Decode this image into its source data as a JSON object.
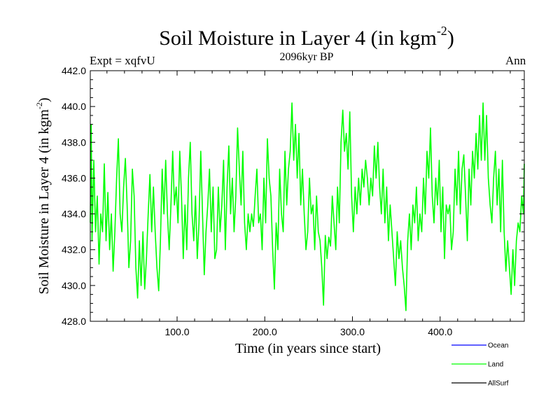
{
  "chart_data": {
    "type": "line",
    "title_main": "Soil Moisture in Layer 4 (in kgm",
    "title_exp": "-2",
    "title_close": ")",
    "subtitle": "2096kyr BP",
    "expt_label": "Expt = xqfvU",
    "season_label": "Ann",
    "xlabel": "Time (in years since start)",
    "ylabel_main": "Soil Moisture in Layer 4 (in kgm",
    "ylabel_exp": "-2",
    "ylabel_close": ")",
    "xlim": [
      1,
      496
    ],
    "ylim": [
      428.0,
      442.0
    ],
    "x_ticks": [
      100,
      200,
      300,
      400
    ],
    "x_tick_labels": [
      "100.0",
      "200.0",
      "300.0",
      "400.0"
    ],
    "y_ticks": [
      428,
      430,
      432,
      434,
      436,
      438,
      440,
      442
    ],
    "y_tick_labels": [
      "428.0",
      "430.0",
      "432.0",
      "434.0",
      "436.0",
      "438.0",
      "440.0",
      "442.0"
    ],
    "legend": [
      {
        "name": "Ocean",
        "color": "#0000ff"
      },
      {
        "name": "Land",
        "color": "#00ff00"
      },
      {
        "name": "AllSurf",
        "color": "#000000"
      }
    ],
    "series": [
      {
        "name": "Land",
        "color": "#00ff00",
        "points": [
          [
            1,
            433.5
          ],
          [
            2,
            439.0
          ],
          [
            3,
            432.5
          ],
          [
            5,
            437.0
          ],
          [
            7,
            433.0
          ],
          [
            9,
            435.0
          ],
          [
            11,
            431.2
          ],
          [
            13,
            434.0
          ],
          [
            15,
            433.0
          ],
          [
            17,
            436.8
          ],
          [
            19,
            432.5
          ],
          [
            21,
            435.2
          ],
          [
            23,
            432.0
          ],
          [
            25,
            434.0
          ],
          [
            27,
            430.8
          ],
          [
            29,
            433.0
          ],
          [
            31,
            436.0
          ],
          [
            33,
            438.2
          ],
          [
            35,
            434.0
          ],
          [
            37,
            433.0
          ],
          [
            39,
            435.5
          ],
          [
            41,
            437.1
          ],
          [
            43,
            434.5
          ],
          [
            45,
            431.0
          ],
          [
            47,
            432.5
          ],
          [
            49,
            436.5
          ],
          [
            51,
            435.0
          ],
          [
            53,
            431.0
          ],
          [
            55,
            429.3
          ],
          [
            57,
            432.5
          ],
          [
            59,
            430.0
          ],
          [
            61,
            433.0
          ],
          [
            63,
            429.8
          ],
          [
            65,
            431.5
          ],
          [
            67,
            434.0
          ],
          [
            69,
            436.2
          ],
          [
            71,
            433.0
          ],
          [
            73,
            435.5
          ],
          [
            75,
            433.0
          ],
          [
            77,
            431.0
          ],
          [
            79,
            429.7
          ],
          [
            81,
            432.5
          ],
          [
            83,
            436.5
          ],
          [
            85,
            434.0
          ],
          [
            87,
            437.0
          ],
          [
            89,
            434.0
          ],
          [
            91,
            432.0
          ],
          [
            93,
            434.5
          ],
          [
            95,
            437.5
          ],
          [
            97,
            434.5
          ],
          [
            99,
            435.5
          ],
          [
            101,
            433.5
          ],
          [
            103,
            437.5
          ],
          [
            105,
            435.0
          ],
          [
            107,
            431.5
          ],
          [
            109,
            434.5
          ],
          [
            111,
            432.0
          ],
          [
            113,
            436.0
          ],
          [
            115,
            438.0
          ],
          [
            117,
            434.0
          ],
          [
            119,
            432.5
          ],
          [
            121,
            435.0
          ],
          [
            123,
            431.5
          ],
          [
            125,
            433.5
          ],
          [
            127,
            437.5
          ],
          [
            129,
            434.0
          ],
          [
            131,
            430.6
          ],
          [
            133,
            433.0
          ],
          [
            135,
            434.5
          ],
          [
            137,
            436.5
          ],
          [
            139,
            433.0
          ],
          [
            141,
            435.5
          ],
          [
            143,
            431.5
          ],
          [
            145,
            432.0
          ],
          [
            147,
            435.5
          ],
          [
            149,
            433.0
          ],
          [
            151,
            434.5
          ],
          [
            153,
            437.0
          ],
          [
            155,
            432.0
          ],
          [
            157,
            435.5
          ],
          [
            159,
            437.8
          ],
          [
            161,
            434.0
          ],
          [
            163,
            436.0
          ],
          [
            165,
            433.0
          ],
          [
            167,
            435.0
          ],
          [
            169,
            438.8
          ],
          [
            171,
            436.5
          ],
          [
            173,
            434.5
          ],
          [
            175,
            437.5
          ],
          [
            177,
            433.5
          ],
          [
            179,
            432.0
          ],
          [
            181,
            434.0
          ],
          [
            183,
            433.0
          ],
          [
            185,
            434.0
          ],
          [
            187,
            433.3
          ],
          [
            189,
            435.0
          ],
          [
            191,
            436.5
          ],
          [
            193,
            433.5
          ],
          [
            195,
            434.0
          ],
          [
            197,
            432.0
          ],
          [
            199,
            436.0
          ],
          [
            201,
            433.5
          ],
          [
            203,
            438.2
          ],
          [
            205,
            436.0
          ],
          [
            207,
            435.0
          ],
          [
            209,
            432.0
          ],
          [
            211,
            429.8
          ],
          [
            213,
            433.5
          ],
          [
            215,
            432.0
          ],
          [
            217,
            436.5
          ],
          [
            219,
            434.0
          ],
          [
            221,
            433.0
          ],
          [
            223,
            437.5
          ],
          [
            225,
            434.5
          ],
          [
            227,
            436.5
          ],
          [
            229,
            437.5
          ],
          [
            231,
            440.2
          ],
          [
            233,
            437.0
          ],
          [
            235,
            439.0
          ],
          [
            237,
            436.0
          ],
          [
            239,
            438.5
          ],
          [
            241,
            434.5
          ],
          [
            243,
            436.5
          ],
          [
            245,
            434.0
          ],
          [
            247,
            432.0
          ],
          [
            249,
            433.0
          ],
          [
            251,
            436.0
          ],
          [
            253,
            434.0
          ],
          [
            255,
            434.5
          ],
          [
            257,
            432.0
          ],
          [
            259,
            435.0
          ],
          [
            261,
            433.0
          ],
          [
            263,
            432.5
          ],
          [
            265,
            431.0
          ],
          [
            267,
            428.9
          ],
          [
            269,
            432.8
          ],
          [
            271,
            431.5
          ],
          [
            273,
            432.7
          ],
          [
            275,
            432.2
          ],
          [
            277,
            435.0
          ],
          [
            279,
            433.5
          ],
          [
            281,
            432.0
          ],
          [
            283,
            435.5
          ],
          [
            285,
            433.5
          ],
          [
            287,
            438.0
          ],
          [
            289,
            439.8
          ],
          [
            291,
            437.5
          ],
          [
            293,
            438.5
          ],
          [
            295,
            436.5
          ],
          [
            297,
            439.7
          ],
          [
            299,
            435.0
          ],
          [
            301,
            433.0
          ],
          [
            303,
            435.5
          ],
          [
            305,
            434.0
          ],
          [
            307,
            436.0
          ],
          [
            309,
            434.5
          ],
          [
            311,
            436.5
          ],
          [
            313,
            435.5
          ],
          [
            315,
            437.0
          ],
          [
            317,
            436.0
          ],
          [
            319,
            434.5
          ],
          [
            321,
            436.0
          ],
          [
            323,
            435.0
          ],
          [
            325,
            437.8
          ],
          [
            327,
            436.0
          ],
          [
            329,
            438.0
          ],
          [
            331,
            435.5
          ],
          [
            333,
            434.0
          ],
          [
            335,
            436.5
          ],
          [
            337,
            433.5
          ],
          [
            339,
            435.5
          ],
          [
            341,
            432.5
          ],
          [
            343,
            434.5
          ],
          [
            345,
            433.0
          ],
          [
            347,
            431.5
          ],
          [
            349,
            430.0
          ],
          [
            351,
            433.0
          ],
          [
            353,
            431.5
          ],
          [
            355,
            432.5
          ],
          [
            357,
            431.0
          ],
          [
            359,
            430.0
          ],
          [
            361,
            428.6
          ],
          [
            363,
            432.5
          ],
          [
            365,
            434.0
          ],
          [
            367,
            432.0
          ],
          [
            369,
            434.5
          ],
          [
            371,
            433.5
          ],
          [
            373,
            435.5
          ],
          [
            375,
            432.5
          ],
          [
            377,
            434.0
          ],
          [
            379,
            433.0
          ],
          [
            381,
            436.0
          ],
          [
            383,
            434.0
          ],
          [
            385,
            437.5
          ],
          [
            387,
            436.0
          ],
          [
            389,
            438.8
          ],
          [
            391,
            435.0
          ],
          [
            393,
            433.5
          ],
          [
            395,
            436.0
          ],
          [
            397,
            434.5
          ],
          [
            399,
            437.0
          ],
          [
            401,
            433.0
          ],
          [
            403,
            435.5
          ],
          [
            405,
            431.5
          ],
          [
            407,
            434.5
          ],
          [
            409,
            434.0
          ],
          [
            411,
            434.5
          ],
          [
            413,
            432.0
          ],
          [
            415,
            433.0
          ],
          [
            417,
            436.5
          ],
          [
            419,
            434.5
          ],
          [
            421,
            437.5
          ],
          [
            423,
            434.0
          ],
          [
            425,
            436.5
          ],
          [
            427,
            437.3
          ],
          [
            429,
            435.0
          ],
          [
            431,
            432.5
          ],
          [
            433,
            436.5
          ],
          [
            435,
            434.5
          ],
          [
            437,
            437.5
          ],
          [
            439,
            436.0
          ],
          [
            441,
            438.5
          ],
          [
            443,
            436.5
          ],
          [
            445,
            439.5
          ],
          [
            447,
            437.0
          ],
          [
            449,
            440.2
          ],
          [
            451,
            437.0
          ],
          [
            453,
            439.5
          ],
          [
            455,
            436.0
          ],
          [
            457,
            434.5
          ],
          [
            459,
            433.5
          ],
          [
            461,
            436.0
          ],
          [
            463,
            437.5
          ],
          [
            465,
            434.5
          ],
          [
            467,
            436.5
          ],
          [
            469,
            433.0
          ],
          [
            471,
            437.0
          ],
          [
            473,
            433.0
          ],
          [
            475,
            430.8
          ],
          [
            477,
            432.5
          ],
          [
            479,
            431.0
          ],
          [
            481,
            429.5
          ],
          [
            483,
            432.0
          ],
          [
            485,
            430.0
          ],
          [
            487,
            432.5
          ],
          [
            489,
            433.5
          ],
          [
            491,
            433.0
          ],
          [
            493,
            435.0
          ],
          [
            495,
            434.0
          ],
          [
            496,
            436.8
          ]
        ]
      }
    ]
  }
}
